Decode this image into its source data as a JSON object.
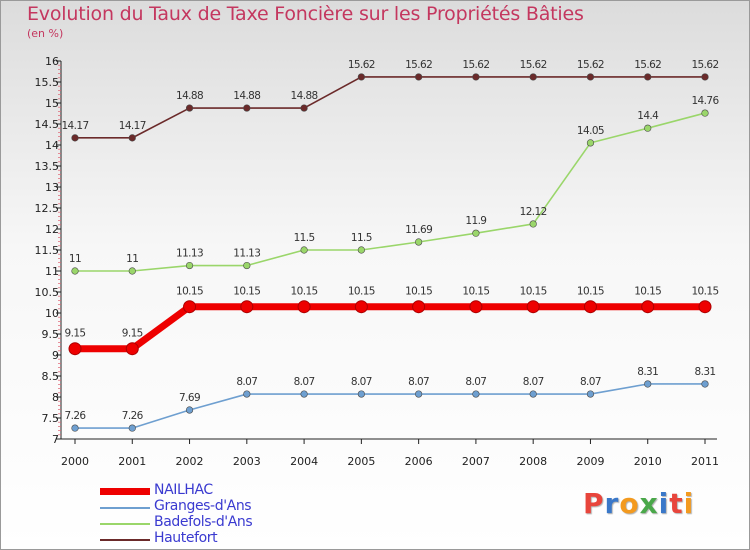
{
  "chart_data": {
    "type": "line",
    "title": "Evolution du Taux de Taxe Foncière sur les Propriétés Bâties",
    "ylabel": "(en %)",
    "xlabel": "",
    "ylim": [
      7,
      16
    ],
    "yticks": [
      "7",
      "7.5",
      "8",
      "8.5",
      "9",
      "9.5",
      "10",
      "10.5",
      "11",
      "11.5",
      "12",
      "12.5",
      "13",
      "13.5",
      "14",
      "14.5",
      "15",
      "15.5",
      "16"
    ],
    "x": [
      "2000",
      "2001",
      "2002",
      "2003",
      "2004",
      "2005",
      "2006",
      "2007",
      "2008",
      "2009",
      "2010",
      "2011"
    ],
    "series": [
      {
        "name": "Hautefort",
        "color": "#6b2a2a",
        "values": [
          14.17,
          14.17,
          14.88,
          14.88,
          14.88,
          15.62,
          15.62,
          15.62,
          15.62,
          15.62,
          15.62,
          15.62
        ],
        "labels": [
          "14.17",
          "14.17",
          "14.88",
          "14.88",
          "14.88",
          "15.62",
          "15.62",
          "15.62",
          "15.62",
          "15.62",
          "15.62",
          "15.62"
        ]
      },
      {
        "name": "Badefols-d'Ans",
        "color": "#9ad66a",
        "values": [
          11,
          11,
          11.13,
          11.13,
          11.5,
          11.5,
          11.69,
          11.9,
          12.12,
          14.05,
          14.4,
          14.76
        ],
        "labels": [
          "11",
          "11",
          "11.13",
          "11.13",
          "11.5",
          "11.5",
          "11.69",
          "11.9",
          "12.12",
          "14.05",
          "14.4",
          "14.76"
        ]
      },
      {
        "name": "NAILHAC",
        "color": "#ee0000",
        "values": [
          9.15,
          9.15,
          10.15,
          10.15,
          10.15,
          10.15,
          10.15,
          10.15,
          10.15,
          10.15,
          10.15,
          10.15
        ],
        "labels": [
          "9.15",
          "9.15",
          "10.15",
          "10.15",
          "10.15",
          "10.15",
          "10.15",
          "10.15",
          "10.15",
          "10.15",
          "10.15",
          "10.15"
        ]
      },
      {
        "name": "Granges-d'Ans",
        "color": "#6e9fd0",
        "values": [
          7.26,
          7.26,
          7.69,
          8.07,
          8.07,
          8.07,
          8.07,
          8.07,
          8.07,
          8.07,
          8.31,
          8.31
        ],
        "labels": [
          "7.26",
          "7.26",
          "7.69",
          "8.07",
          "8.07",
          "8.07",
          "8.07",
          "8.07",
          "8.07",
          "8.07",
          "8.31",
          "8.31"
        ]
      }
    ],
    "legend": [
      "NAILHAC",
      "Granges-d'Ans",
      "Badefols-d'Ans",
      "Hautefort"
    ],
    "legend_position": "bottom-left",
    "grid": false
  },
  "logo": {
    "text": "Proxiti"
  }
}
